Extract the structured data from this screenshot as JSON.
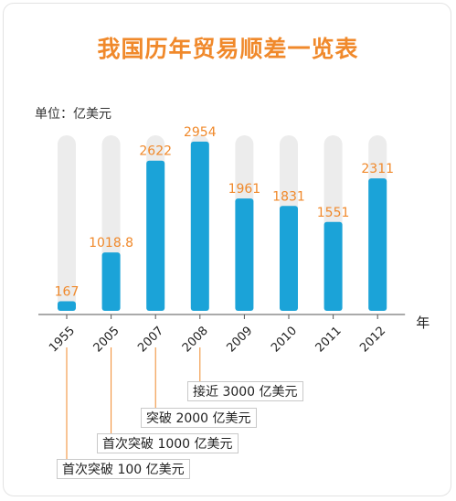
{
  "chart_data": {
    "type": "bar",
    "title": "我国历年贸易顺差一览表",
    "unit_label": "单位：亿美元",
    "x_unit": "年",
    "categories": [
      "1955",
      "2005",
      "2007",
      "2008",
      "2009",
      "2010",
      "2011",
      "2012"
    ],
    "values": [
      167,
      1018.8,
      2622,
      2954,
      1961,
      1831,
      1551,
      2311
    ],
    "value_labels": [
      "167",
      "1018.8",
      "2622",
      "2954",
      "1961",
      "1831",
      "1551",
      "2311"
    ],
    "ylim": [
      0,
      3000
    ],
    "grid": false,
    "bar_color": "#1ba3d8",
    "track_color": "#ececec",
    "label_color": "#f0892b",
    "annotations": [
      {
        "text": "接近 3000 亿美元",
        "category": "2008"
      },
      {
        "text": "突破 2000 亿美元",
        "category": "2007"
      },
      {
        "text": "首次突破 1000 亿美元",
        "category": "2005"
      },
      {
        "text": "首次突破 100 亿美元",
        "category": "1955"
      }
    ]
  }
}
